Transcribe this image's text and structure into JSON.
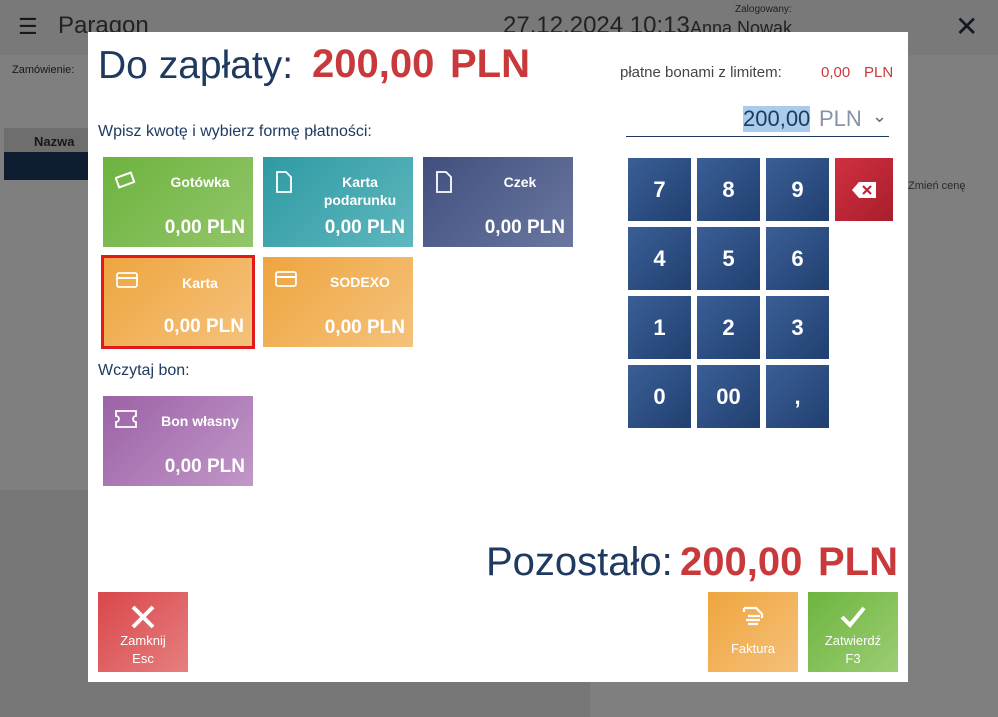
{
  "background": {
    "title": "Paragon",
    "datetime": "27.12.2024 10:13",
    "logged_label": "Zalogowany:",
    "user": "Anna Nowak",
    "order_label": "Zamówienie:",
    "column_name": "Nazwa",
    "price_button": "Zmień cenę"
  },
  "dialog": {
    "due_label": "Do zapłaty:",
    "due_amount": "200,00",
    "due_currency": "PLN",
    "voucher_limit_label": "płatne bonami z limitem:",
    "voucher_limit_amount": "0,00",
    "voucher_limit_currency": "PLN",
    "input_amount": "200,00",
    "input_currency": "PLN",
    "methods_label": "Wpisz kwotę i wybierz formę płatności:",
    "methods": [
      {
        "name": "Gotówka",
        "amount": "0,00 PLN"
      },
      {
        "name": "Karta podarunku",
        "amount": "0,00 PLN"
      },
      {
        "name": "Czek",
        "amount": "0,00 PLN"
      },
      {
        "name": "Karta",
        "amount": "0,00 PLN"
      },
      {
        "name": "SODEXO",
        "amount": "0,00 PLN"
      }
    ],
    "voucher_label": "Wczytaj bon:",
    "vouchers": [
      {
        "name": "Bon własny",
        "amount": "0,00 PLN"
      }
    ],
    "keypad": [
      "7",
      "8",
      "9",
      "4",
      "5",
      "6",
      "1",
      "2",
      "3",
      "0",
      "00",
      ","
    ],
    "remaining_label": "Pozostało:",
    "remaining_amount": "200,00",
    "remaining_currency": "PLN",
    "buttons": [
      {
        "label": "Zamknij",
        "shortcut": "Esc"
      },
      {
        "label": "Faktura"
      },
      {
        "label": "Zatwierdź",
        "shortcut": "F3"
      }
    ]
  }
}
